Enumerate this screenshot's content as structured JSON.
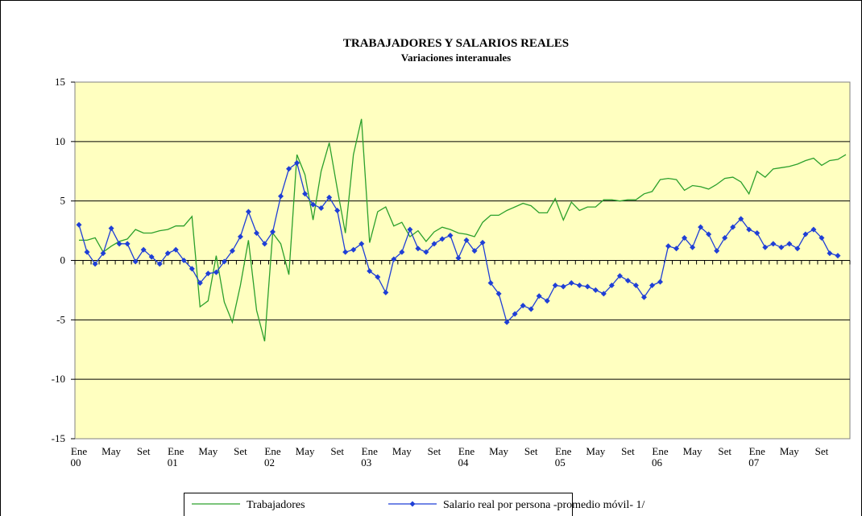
{
  "chart_data": {
    "type": "line",
    "title": "TRABAJADORES  Y SALARIOS REALES",
    "subtitle": "Variaciones interanuales",
    "categories": [
      "Ene 00",
      null,
      null,
      null,
      "May",
      null,
      null,
      null,
      "Set",
      null,
      null,
      null,
      "Ene 01",
      null,
      null,
      null,
      "May",
      null,
      null,
      null,
      "Set",
      null,
      null,
      null,
      "Ene 02",
      null,
      null,
      null,
      "May",
      null,
      null,
      null,
      "Set",
      null,
      null,
      null,
      "Ene 03",
      null,
      null,
      null,
      "May",
      null,
      null,
      null,
      "Set",
      null,
      null,
      null,
      "Ene 04",
      null,
      null,
      null,
      "May",
      null,
      null,
      null,
      "Set",
      null,
      null,
      null,
      "Ene 05",
      null,
      null,
      null,
      "May",
      null,
      null,
      null,
      "Set",
      null,
      null,
      null,
      "Ene 06",
      null,
      null,
      null,
      "May",
      null,
      null,
      null,
      "Set",
      null,
      null,
      null,
      "Ene 07",
      null,
      null,
      null,
      "May",
      null,
      null,
      null,
      "Set",
      null,
      null,
      null
    ],
    "series": [
      {
        "name": "Trabajadores",
        "color": "#2ca02c",
        "marker": false,
        "values": [
          1.7,
          1.7,
          1.9,
          0.7,
          1.2,
          1.6,
          1.8,
          2.6,
          2.3,
          2.3,
          2.5,
          2.6,
          2.9,
          2.9,
          3.7,
          -3.9,
          -3.4,
          0.4,
          -3.5,
          -5.2,
          -2.1,
          1.7,
          -4.2,
          -6.8,
          2.3,
          1.4,
          -1.2,
          8.9,
          7.2,
          3.4,
          7.5,
          9.9,
          6.0,
          2.3,
          8.9,
          11.9,
          1.5,
          4.1,
          4.5,
          2.9,
          3.2,
          2.0,
          2.5,
          1.6,
          2.4,
          2.8,
          2.6,
          2.3,
          2.2,
          2.0,
          3.2,
          3.8,
          3.8,
          4.2,
          4.5,
          4.8,
          4.6,
          4.0,
          4.0,
          5.2,
          3.4,
          4.9,
          4.2,
          4.5,
          4.5,
          5.1,
          5.1,
          5.0,
          5.1,
          5.1,
          5.6,
          5.8,
          6.8,
          6.9,
          6.8,
          5.9,
          6.3,
          6.2,
          6.0,
          6.4,
          6.9,
          7.0,
          6.6,
          5.6,
          7.5,
          7.0,
          7.7,
          7.8,
          7.9,
          8.1,
          8.4,
          8.6,
          8.0,
          8.4,
          8.5,
          8.9
        ]
      },
      {
        "name": "Salario real por persona -promedio móvil- 1/",
        "color": "#1f3fd6",
        "marker": true,
        "values": [
          3.0,
          0.7,
          -0.3,
          0.6,
          2.7,
          1.4,
          1.4,
          -0.1,
          0.9,
          0.3,
          -0.3,
          0.6,
          0.9,
          0.0,
          -0.7,
          -1.9,
          -1.1,
          -1.0,
          -0.1,
          0.8,
          2.0,
          4.1,
          2.3,
          1.4,
          2.4,
          5.4,
          7.7,
          8.2,
          5.6,
          4.7,
          4.4,
          5.3,
          4.2,
          0.7,
          0.9,
          1.4,
          -0.9,
          -1.4,
          -2.7,
          0.1,
          0.7,
          2.6,
          1.0,
          0.7,
          1.4,
          1.8,
          2.1,
          0.2,
          1.7,
          0.8,
          1.5,
          -1.9,
          -2.8,
          -5.2,
          -4.5,
          -3.8,
          -4.1,
          -3.0,
          -3.4,
          -2.1,
          -2.2,
          -1.9,
          -2.1,
          -2.2,
          -2.5,
          -2.8,
          -2.1,
          -1.3,
          -1.7,
          -2.1,
          -3.1,
          -2.1,
          -1.8,
          1.2,
          1.0,
          1.9,
          1.1,
          2.8,
          2.2,
          0.8,
          1.9,
          2.8,
          3.5,
          2.6,
          2.3,
          1.1,
          1.4,
          1.1,
          1.4,
          1.0,
          2.2,
          2.6,
          1.9,
          0.6,
          0.4,
          null
        ]
      }
    ],
    "ylim": [
      -15,
      15
    ],
    "yticks": [
      -15,
      -10,
      -5,
      0,
      5,
      10,
      15
    ],
    "grid": true,
    "legend": "bottom"
  }
}
